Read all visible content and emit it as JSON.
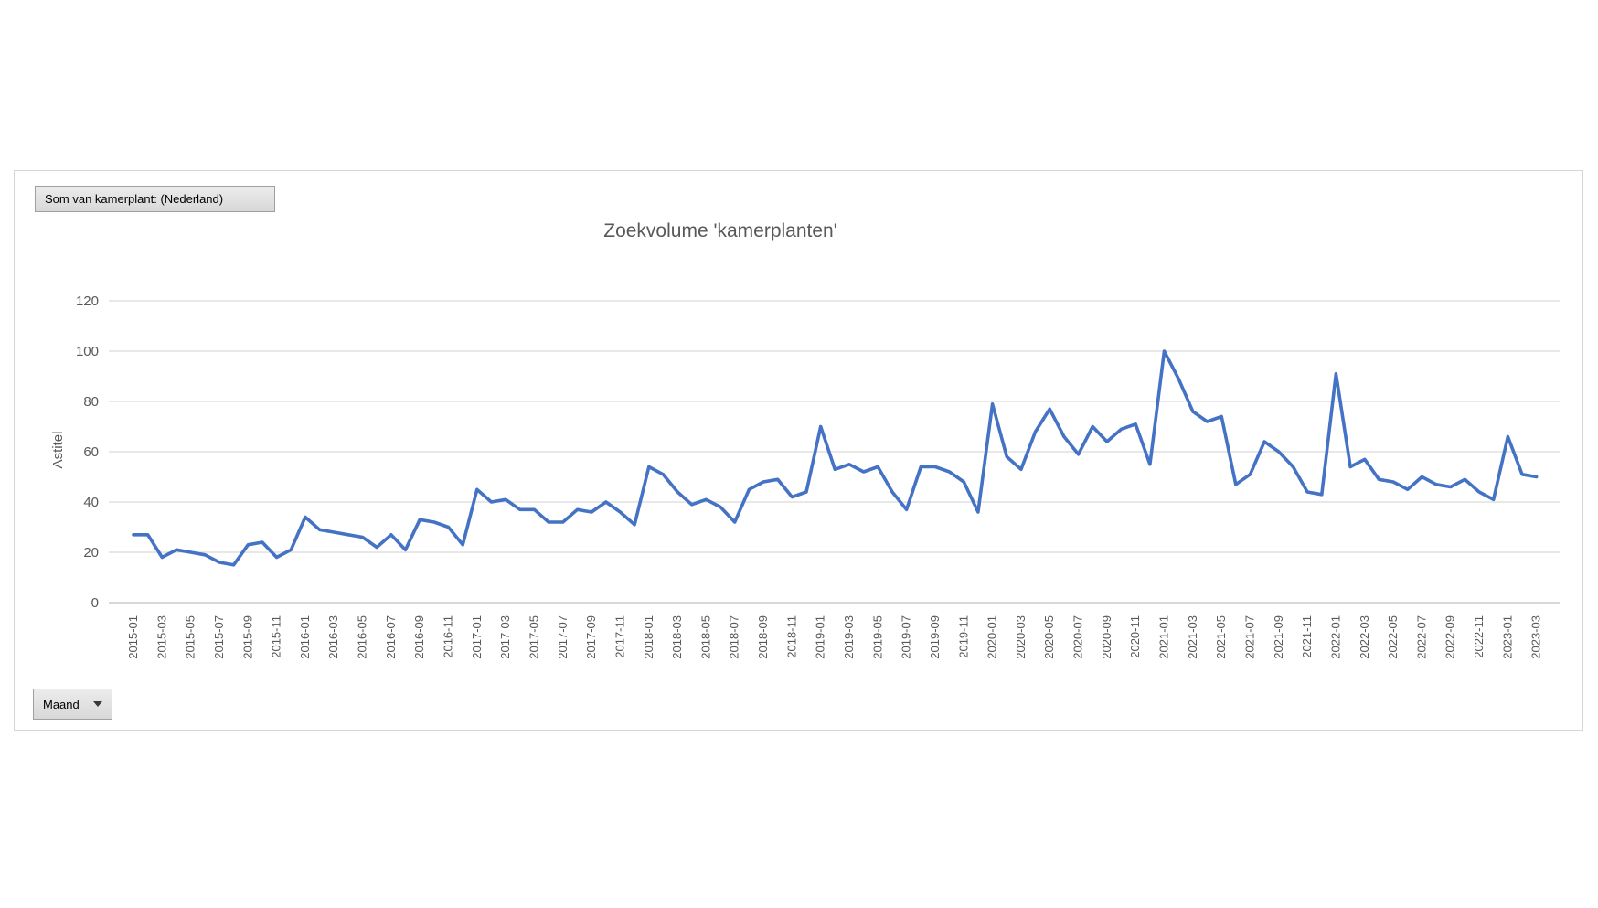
{
  "page": {
    "background": "#ffffff"
  },
  "pivot": {
    "value_field_button": "Som van kamerplant: (Nederland)",
    "axis_field_button": "Maand"
  },
  "colors": {
    "line": "#4472C4",
    "gridline": "#D9D9D9",
    "axis_line": "#BFBFBF",
    "axis_text": "#595959",
    "title_text": "#595959",
    "chart_border": "#D6D6D6"
  },
  "chart_data": {
    "type": "line",
    "title": "Zoekvolume 'kamerplanten'",
    "y_axis_title": "Astitel",
    "xlabel": "",
    "ylabel": "Astitel",
    "ylim": [
      0,
      120
    ],
    "y_ticks": [
      0,
      20,
      40,
      60,
      80,
      100,
      120
    ],
    "x_tick_step": 2,
    "grid": true,
    "legend": "none",
    "series_name": "Som van kamerplant: (Nederland)",
    "x": [
      "2015-01",
      "2015-02",
      "2015-03",
      "2015-04",
      "2015-05",
      "2015-06",
      "2015-07",
      "2015-08",
      "2015-09",
      "2015-10",
      "2015-11",
      "2015-12",
      "2016-01",
      "2016-02",
      "2016-03",
      "2016-04",
      "2016-05",
      "2016-06",
      "2016-07",
      "2016-08",
      "2016-09",
      "2016-10",
      "2016-11",
      "2016-12",
      "2017-01",
      "2017-02",
      "2017-03",
      "2017-04",
      "2017-05",
      "2017-06",
      "2017-07",
      "2017-08",
      "2017-09",
      "2017-10",
      "2017-11",
      "2017-12",
      "2018-01",
      "2018-02",
      "2018-03",
      "2018-04",
      "2018-05",
      "2018-06",
      "2018-07",
      "2018-08",
      "2018-09",
      "2018-10",
      "2018-11",
      "2018-12",
      "2019-01",
      "2019-02",
      "2019-03",
      "2019-04",
      "2019-05",
      "2019-06",
      "2019-07",
      "2019-08",
      "2019-09",
      "2019-10",
      "2019-11",
      "2019-12",
      "2020-01",
      "2020-02",
      "2020-03",
      "2020-04",
      "2020-05",
      "2020-06",
      "2020-07",
      "2020-08",
      "2020-09",
      "2020-10",
      "2020-11",
      "2020-12",
      "2021-01",
      "2021-02",
      "2021-03",
      "2021-04",
      "2021-05",
      "2021-06",
      "2021-07",
      "2021-08",
      "2021-09",
      "2021-10",
      "2021-11",
      "2021-12",
      "2022-01",
      "2022-02",
      "2022-03",
      "2022-04",
      "2022-05",
      "2022-06",
      "2022-07",
      "2022-08",
      "2022-09",
      "2022-10",
      "2022-11",
      "2022-12",
      "2023-01",
      "2023-02",
      "2023-03"
    ],
    "values": [
      27,
      27,
      18,
      21,
      20,
      19,
      16,
      15,
      23,
      24,
      18,
      21,
      34,
      29,
      28,
      27,
      26,
      22,
      27,
      21,
      33,
      32,
      30,
      23,
      45,
      40,
      41,
      37,
      37,
      32,
      32,
      37,
      36,
      40,
      36,
      31,
      54,
      51,
      44,
      39,
      41,
      38,
      32,
      45,
      48,
      49,
      42,
      44,
      70,
      53,
      55,
      52,
      54,
      44,
      37,
      54,
      54,
      52,
      48,
      36,
      79,
      58,
      53,
      68,
      77,
      66,
      59,
      70,
      64,
      69,
      71,
      55,
      100,
      89,
      76,
      72,
      74,
      47,
      51,
      64,
      60,
      54,
      44,
      43,
      91,
      54,
      57,
      49,
      48,
      45,
      50,
      47,
      46,
      49,
      44,
      41,
      66,
      51,
      50
    ]
  }
}
